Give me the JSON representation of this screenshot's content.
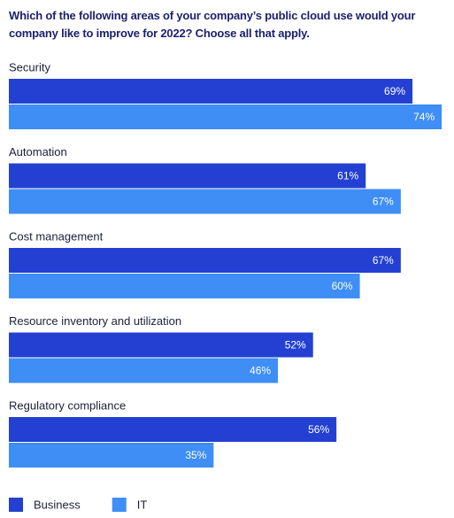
{
  "chart_data": {
    "type": "bar",
    "orientation": "horizontal",
    "title": "Which of the following areas of your company’s public cloud use would your company like to improve for 2022? Choose all that apply.",
    "categories": [
      "Security",
      "Automation",
      "Cost management",
      "Resource inventory and utilization",
      "Regulatory compliance"
    ],
    "series": [
      {
        "name": "Business",
        "color": "#2340d2",
        "values": [
          69,
          61,
          67,
          52,
          56
        ],
        "value_labels": [
          "69%",
          "61%",
          "67%",
          "52%",
          "56%"
        ]
      },
      {
        "name": "IT",
        "color": "#3e8ef6",
        "values": [
          74,
          67,
          60,
          46,
          35
        ],
        "value_labels": [
          "74%",
          "67%",
          "60%",
          "46%",
          "35%"
        ]
      }
    ]
  }
}
